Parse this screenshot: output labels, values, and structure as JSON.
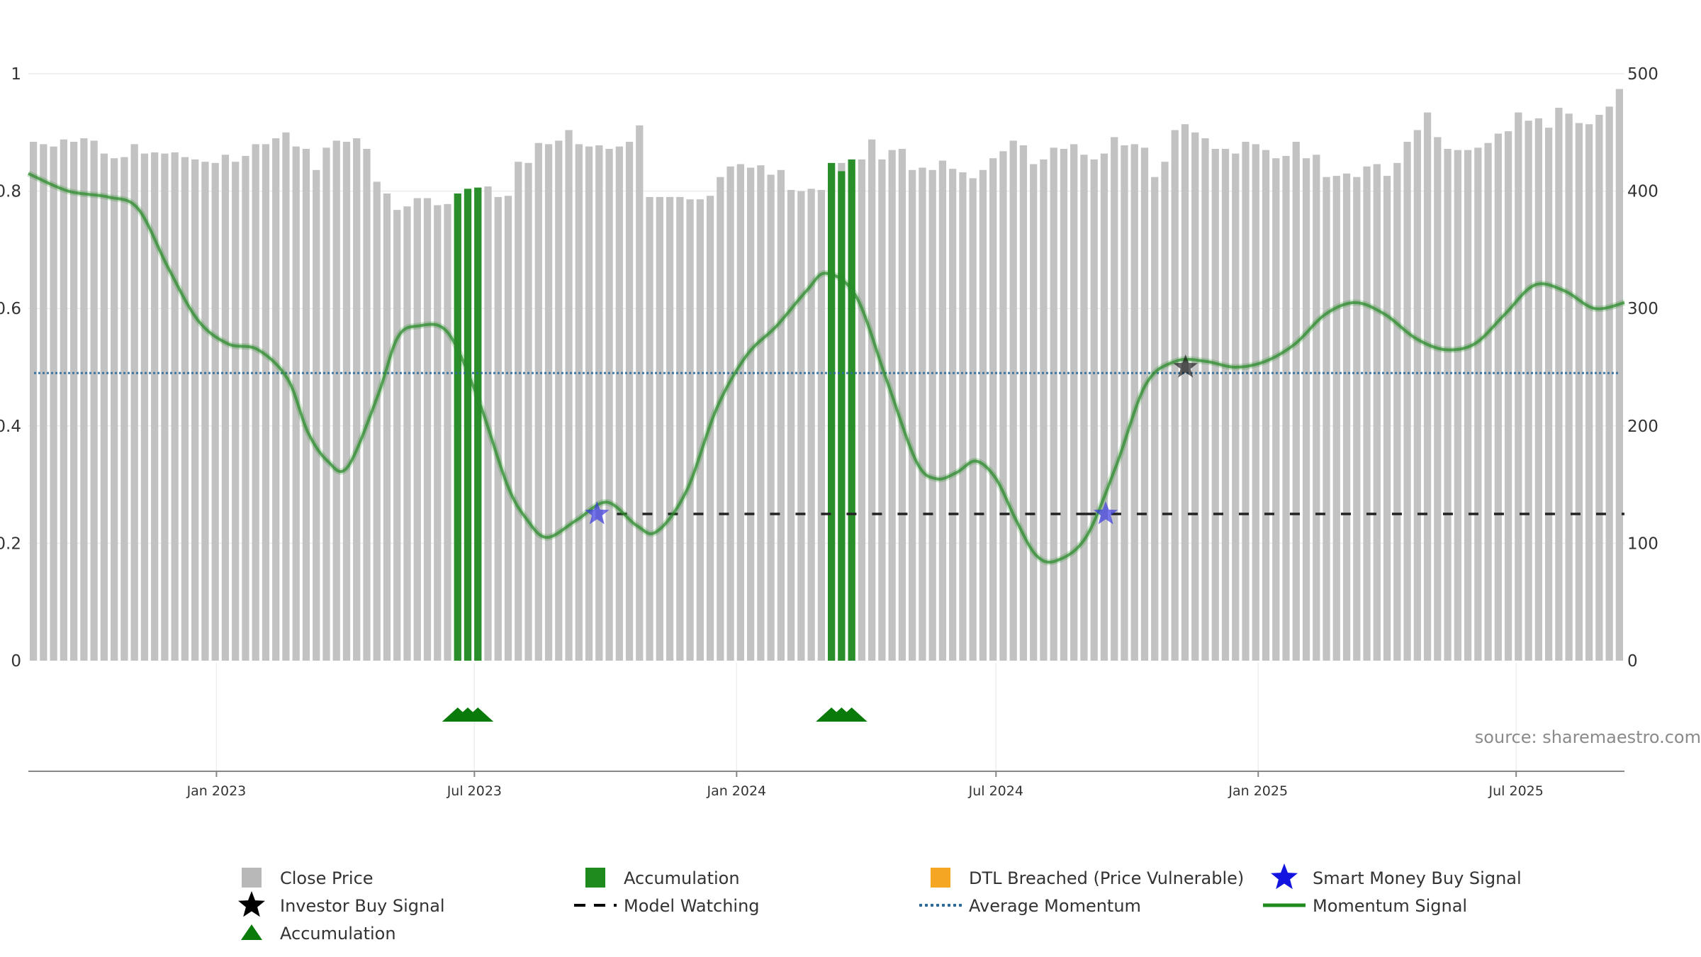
{
  "chart_data": {
    "type": "bar",
    "source_text": "source: sharemaestro.com",
    "left_axis": {
      "ticks": [
        0,
        0.2,
        0.4,
        0.6,
        0.8,
        1
      ],
      "labels": [
        "0",
        "0.2",
        "0.4",
        "0.6",
        "0.8",
        "1"
      ],
      "ylim": [
        0,
        1
      ]
    },
    "right_axis": {
      "ticks": [
        0,
        100,
        200,
        300,
        400,
        500
      ],
      "labels": [
        "0",
        "100",
        "200",
        "300",
        "400",
        "500"
      ],
      "ylim": [
        0,
        500
      ]
    },
    "x_axis": {
      "start": "2022-08-22",
      "end": "2025-09-15",
      "ticks": [
        {
          "date": "2023-01-01",
          "label": "Jan 2023"
        },
        {
          "date": "2023-07-01",
          "label": "Jul 2023"
        },
        {
          "date": "2024-01-01",
          "label": "Jan 2024"
        },
        {
          "date": "2024-07-01",
          "label": "Jul 2024"
        },
        {
          "date": "2025-01-01",
          "label": "Jan 2025"
        },
        {
          "date": "2025-07-01",
          "label": "Jul 2025"
        }
      ]
    },
    "close_price": [
      442,
      440,
      438,
      444,
      442,
      445,
      443,
      432,
      428,
      429,
      440,
      432,
      433,
      432,
      433,
      429,
      427,
      425,
      424,
      431,
      425,
      430,
      440,
      440,
      445,
      450,
      438,
      436,
      418,
      437,
      443,
      442,
      445,
      436,
      408,
      398,
      384,
      387,
      394,
      394,
      388,
      389,
      387,
      400,
      403,
      404,
      395,
      396,
      425,
      424,
      441,
      440,
      443,
      452,
      440,
      438,
      439,
      436,
      438,
      442,
      456,
      395,
      395,
      395,
      395,
      393,
      393,
      396,
      412,
      421,
      423,
      420,
      422,
      414,
      418,
      401,
      400,
      402,
      401,
      420,
      424,
      417,
      427,
      444,
      427,
      435,
      436,
      418,
      420,
      418,
      426,
      419,
      416,
      411,
      418,
      428,
      434,
      443,
      439,
      423,
      427,
      437,
      436,
      440,
      431,
      427,
      432,
      446,
      439,
      440,
      437,
      412,
      425,
      452,
      457,
      450,
      445,
      436,
      436,
      432,
      442,
      440,
      435,
      428,
      430,
      442,
      428,
      431,
      412,
      413,
      415,
      412,
      421,
      423,
      413,
      424,
      442,
      452,
      467,
      446,
      436,
      435,
      435,
      437,
      441,
      449,
      451,
      467,
      460,
      462,
      454,
      471,
      466,
      458,
      457,
      465,
      472,
      487
    ],
    "accumulation_bars": [
      {
        "index": 42,
        "value": 398
      },
      {
        "index": 43,
        "value": 402
      },
      {
        "index": 44,
        "value": 403
      },
      {
        "index": 79,
        "value": 424
      },
      {
        "index": 80,
        "value": 417
      },
      {
        "index": 81,
        "value": 427
      }
    ],
    "momentum_signal": [
      [
        "2022-08-22",
        0.83
      ],
      [
        "2022-09-19",
        0.8
      ],
      [
        "2022-10-17",
        0.79
      ],
      [
        "2022-11-07",
        0.77
      ],
      [
        "2022-11-28",
        0.67
      ],
      [
        "2022-12-19",
        0.58
      ],
      [
        "2023-01-09",
        0.54
      ],
      [
        "2023-01-30",
        0.53
      ],
      [
        "2023-02-20",
        0.48
      ],
      [
        "2023-03-06",
        0.39
      ],
      [
        "2023-03-20",
        0.34
      ],
      [
        "2023-04-03",
        0.33
      ],
      [
        "2023-04-24",
        0.45
      ],
      [
        "2023-05-08",
        0.55
      ],
      [
        "2023-05-22",
        0.57
      ],
      [
        "2023-06-12",
        0.56
      ],
      [
        "2023-07-03",
        0.45
      ],
      [
        "2023-07-24",
        0.3
      ],
      [
        "2023-08-07",
        0.24
      ],
      [
        "2023-08-21",
        0.21
      ],
      [
        "2023-09-11",
        0.24
      ],
      [
        "2023-10-02",
        0.27
      ],
      [
        "2023-10-23",
        0.23
      ],
      [
        "2023-11-06",
        0.22
      ],
      [
        "2023-11-27",
        0.29
      ],
      [
        "2023-12-18",
        0.43
      ],
      [
        "2024-01-08",
        0.52
      ],
      [
        "2024-01-29",
        0.57
      ],
      [
        "2024-02-19",
        0.63
      ],
      [
        "2024-03-04",
        0.66
      ],
      [
        "2024-03-25",
        0.62
      ],
      [
        "2024-04-15",
        0.48
      ],
      [
        "2024-05-06",
        0.34
      ],
      [
        "2024-05-20",
        0.31
      ],
      [
        "2024-06-03",
        0.32
      ],
      [
        "2024-06-17",
        0.34
      ],
      [
        "2024-07-01",
        0.31
      ],
      [
        "2024-07-15",
        0.24
      ],
      [
        "2024-07-29",
        0.18
      ],
      [
        "2024-08-12",
        0.17
      ],
      [
        "2024-09-02",
        0.21
      ],
      [
        "2024-09-23",
        0.33
      ],
      [
        "2024-10-14",
        0.47
      ],
      [
        "2024-11-04",
        0.51
      ],
      [
        "2024-11-25",
        0.51
      ],
      [
        "2024-12-16",
        0.5
      ],
      [
        "2025-01-06",
        0.51
      ],
      [
        "2025-01-27",
        0.54
      ],
      [
        "2025-02-17",
        0.59
      ],
      [
        "2025-03-10",
        0.61
      ],
      [
        "2025-03-31",
        0.59
      ],
      [
        "2025-04-21",
        0.55
      ],
      [
        "2025-05-12",
        0.53
      ],
      [
        "2025-06-02",
        0.54
      ],
      [
        "2025-06-23",
        0.59
      ],
      [
        "2025-07-14",
        0.64
      ],
      [
        "2025-08-04",
        0.63
      ],
      [
        "2025-08-25",
        0.6
      ],
      [
        "2025-09-15",
        0.61
      ]
    ],
    "average_momentum": 0.49,
    "model_watching": {
      "value": 0.25,
      "segments": [
        [
          "2023-10-09",
          "2024-09-02"
        ],
        [
          "2024-09-02",
          "2025-09-15"
        ]
      ]
    },
    "smart_money_buy_signals": [
      {
        "date": "2023-09-25",
        "value": 0.25
      },
      {
        "date": "2024-09-16",
        "value": 0.25
      }
    ],
    "investor_buy_signals": [
      {
        "date": "2024-11-11",
        "value": 0.5
      }
    ],
    "accumulation_markers": [
      {
        "index": 42
      },
      {
        "index": 43
      },
      {
        "index": 44
      },
      {
        "index": 79
      },
      {
        "index": 80
      },
      {
        "index": 81
      }
    ],
    "legend": [
      {
        "key": "close_price",
        "label": "Close Price",
        "symbol": "square",
        "color": "#b8b8b8"
      },
      {
        "key": "accumulation_bar",
        "label": "Accumulation",
        "symbol": "square",
        "color": "#1f8b1f"
      },
      {
        "key": "dtl",
        "label": "DTL Breached (Price Vulnerable)",
        "symbol": "square",
        "color": "#f5a623"
      },
      {
        "key": "smart_money",
        "label": "Smart Money Buy Signal",
        "symbol": "star",
        "color": "#1414e0"
      },
      {
        "key": "investor",
        "label": "Investor Buy Signal",
        "symbol": "star",
        "color": "#000000"
      },
      {
        "key": "model_watching",
        "label": "Model Watching",
        "symbol": "dash",
        "color": "#000000"
      },
      {
        "key": "avg_momentum",
        "label": "Average Momentum",
        "symbol": "dots",
        "color": "#2e6d9e"
      },
      {
        "key": "momentum",
        "label": "Momentum Signal",
        "symbol": "line",
        "color": "#1f8b1f"
      },
      {
        "key": "accum_marker",
        "label": "Accumulation",
        "symbol": "triangle",
        "color": "#0a7a0a"
      }
    ]
  }
}
